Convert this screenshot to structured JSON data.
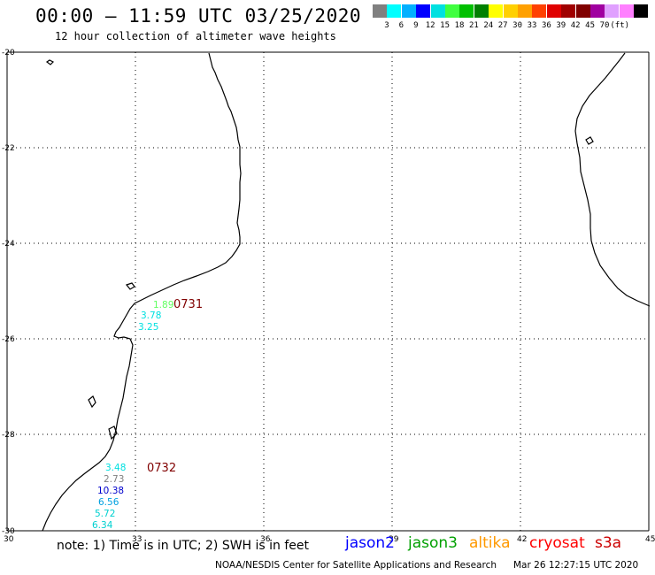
{
  "header": {
    "title": "00:00 – 11:59 UTC 03/25/2020",
    "subtitle": "12 hour collection of altimeter wave heights"
  },
  "legend": {
    "unit": "(ft)",
    "colors": [
      "#808080",
      "#00ffff",
      "#00b0ff",
      "#0000ff",
      "#00e0e0",
      "#40ff40",
      "#00c000",
      "#008000",
      "#ffff00",
      "#ffd000",
      "#ffa000",
      "#ff4000",
      "#e00000",
      "#a00000",
      "#800000",
      "#a000a0",
      "#e0a0ff",
      "#ff80ff",
      "#000000"
    ],
    "labels": [
      "3",
      "6",
      "9",
      "12",
      "15",
      "18",
      "21",
      "24",
      "27",
      "30",
      "33",
      "36",
      "39",
      "42",
      "45",
      "70"
    ]
  },
  "axes": {
    "lat_labels": [
      "-20",
      "-22",
      "-24",
      "-26",
      "-28",
      "-30"
    ],
    "lon_labels": [
      "30",
      "33",
      "36",
      "39",
      "42",
      "45"
    ]
  },
  "observations": [
    {
      "text": "1.89",
      "color": "#60ff60"
    },
    {
      "text": "3.78",
      "color": "#00e0e0"
    },
    {
      "text": "3.25",
      "color": "#00e0e0"
    },
    {
      "text": "3.48",
      "color": "#00e0e0"
    },
    {
      "text": "2.73",
      "color": "#808080"
    },
    {
      "text": "10.38",
      "color": "#0000cc"
    },
    {
      "text": "6.56",
      "color": "#00a0e0"
    },
    {
      "text": "5.72",
      "color": "#00d0d0"
    },
    {
      "text": "6.34",
      "color": "#00d0d0"
    }
  ],
  "pass_times": [
    {
      "text": "0731",
      "color": "#800000"
    },
    {
      "text": "0732",
      "color": "#800000"
    }
  ],
  "footer": {
    "note": "note: 1) Time is in UTC; 2) SWH is in feet",
    "satellites": [
      {
        "name": "jason2",
        "color": "#0000ff"
      },
      {
        "name": "jason3",
        "color": "#00a000"
      },
      {
        "name": "altika",
        "color": "#ff9900"
      },
      {
        "name": "cryosat",
        "color": "#ff0000"
      },
      {
        "name": "s3a",
        "color": "#cc0000"
      }
    ],
    "credit": "NOAA/NESDIS Center for Satellite Applications and Research",
    "timestamp": "Mar 26 12:27:15 UTC 2020"
  }
}
